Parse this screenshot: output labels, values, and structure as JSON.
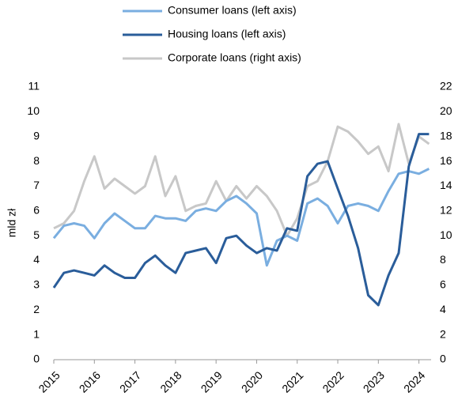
{
  "chart_data": {
    "type": "line",
    "y_label": "mld zł",
    "x": [
      2015,
      2015.25,
      2015.5,
      2015.75,
      2016,
      2016.25,
      2016.5,
      2016.75,
      2017,
      2017.25,
      2017.5,
      2017.75,
      2018,
      2018.25,
      2018.5,
      2018.75,
      2019,
      2019.25,
      2019.5,
      2019.75,
      2020,
      2020.25,
      2020.5,
      2020.75,
      2021,
      2021.25,
      2021.5,
      2021.75,
      2022,
      2022.25,
      2022.5,
      2022.75,
      2023,
      2023.25,
      2023.5,
      2023.75,
      2024,
      2024.25
    ],
    "series": [
      {
        "name": "Consumer loans (left axis)",
        "color": "#7aaee0",
        "axis": "y",
        "values": [
          4.9,
          5.4,
          5.5,
          5.4,
          4.9,
          5.5,
          5.9,
          5.6,
          5.3,
          5.3,
          5.8,
          5.7,
          5.7,
          5.6,
          6.0,
          6.1,
          6.0,
          6.4,
          6.6,
          6.3,
          5.9,
          3.8,
          4.8,
          5.0,
          4.8,
          6.3,
          6.5,
          6.2,
          5.5,
          6.2,
          6.3,
          6.2,
          6.0,
          6.8,
          7.5,
          7.6,
          7.5,
          7.7
        ]
      },
      {
        "name": "Housing loans (left axis)",
        "color": "#2a5d9a",
        "axis": "y",
        "values": [
          2.9,
          3.5,
          3.6,
          3.5,
          3.4,
          3.8,
          3.5,
          3.3,
          3.3,
          3.9,
          4.2,
          3.8,
          3.5,
          4.3,
          4.4,
          4.5,
          3.9,
          4.9,
          5.0,
          4.6,
          4.3,
          4.5,
          4.4,
          5.3,
          5.2,
          7.4,
          7.9,
          8.0,
          6.9,
          5.8,
          4.5,
          2.6,
          2.2,
          3.4,
          4.3,
          7.8,
          9.1,
          9.1
        ]
      },
      {
        "name": "Corporate loans (right axis)",
        "color": "#c8c8c8",
        "axis": "y2",
        "values": [
          10.6,
          11,
          12,
          14.4,
          16.4,
          13.8,
          14.6,
          14,
          13.4,
          14,
          16.4,
          13.2,
          14.8,
          12,
          12.4,
          12.6,
          14.4,
          12.8,
          14,
          13,
          14,
          13.2,
          12,
          10,
          11.4,
          14,
          14.4,
          16,
          18.8,
          18.4,
          17.6,
          16.6,
          17.2,
          15.2,
          19,
          15.8,
          18,
          17.4
        ]
      }
    ],
    "xlim": [
      2015,
      2024.3
    ],
    "xticks": [
      2015,
      2016,
      2017,
      2018,
      2019,
      2020,
      2021,
      2022,
      2023,
      2024
    ],
    "ylim": [
      0,
      11
    ],
    "yticks": [
      0,
      1,
      2,
      3,
      4,
      5,
      6,
      7,
      8,
      9,
      10,
      11
    ],
    "y2lim": [
      0,
      22
    ],
    "y2ticks": [
      0,
      2,
      4,
      6,
      8,
      10,
      12,
      14,
      16,
      18,
      20,
      22
    ]
  }
}
